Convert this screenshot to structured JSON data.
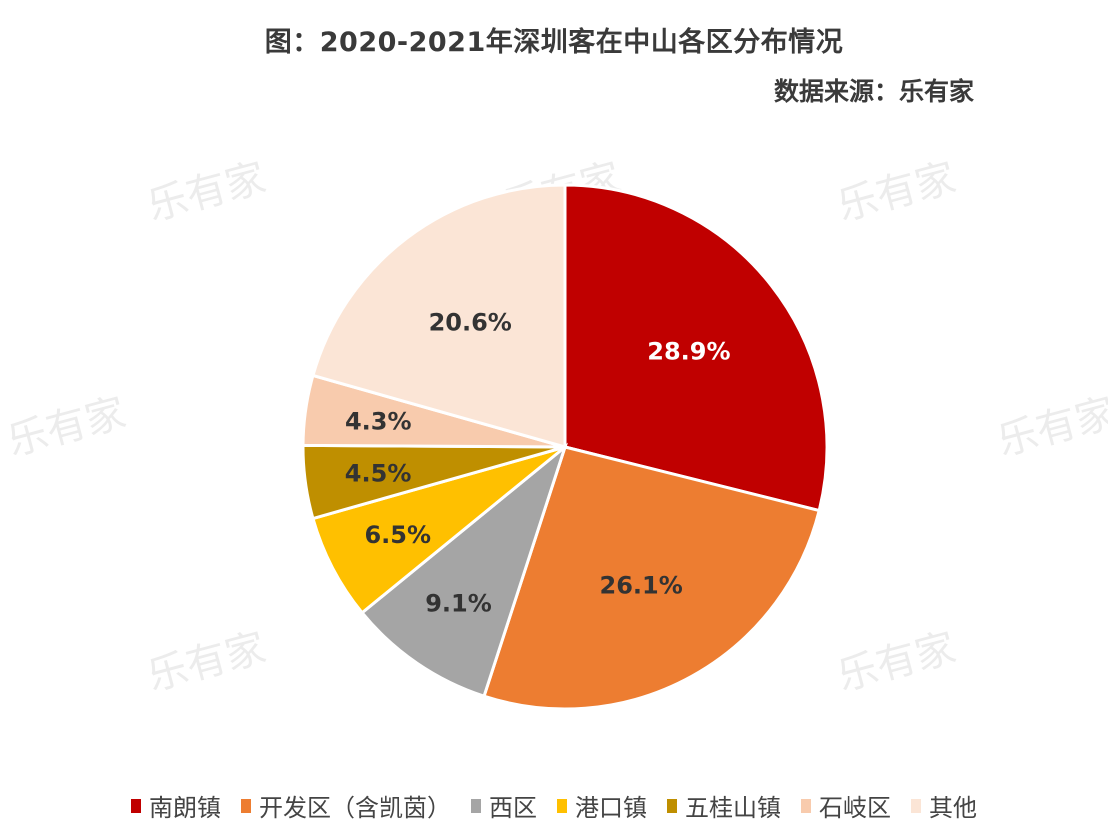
{
  "chart_data": {
    "type": "pie",
    "title": "图：2020-2021年深圳客在中山各区分布情况",
    "subtitle": "数据来源：乐有家",
    "start_angle": "12 o'clock",
    "direction": "clockwise",
    "legend_position": "bottom",
    "slices": [
      {
        "name": "南朗镇",
        "value": 28.9,
        "label": "28.9%",
        "color": "#c00000",
        "label_color": "#ffffff"
      },
      {
        "name": "开发区（含凯茵）",
        "value": 26.1,
        "label": "26.1%",
        "color": "#ed7d31",
        "label_color": "#333333"
      },
      {
        "name": "西区",
        "value": 9.1,
        "label": "9.1%",
        "color": "#a5a5a5",
        "label_color": "#333333"
      },
      {
        "name": "港口镇",
        "value": 6.5,
        "label": "6.5%",
        "color": "#ffc000",
        "label_color": "#333333"
      },
      {
        "name": "五桂山镇",
        "value": 4.5,
        "label": "4.5%",
        "color": "#bf8f00",
        "label_color": "#333333"
      },
      {
        "name": "石岐区",
        "value": 4.3,
        "label": "4.3%",
        "color": "#f8cbad",
        "label_color": "#333333"
      },
      {
        "name": "其他",
        "value": 20.6,
        "label": "20.6%",
        "color": "#fbe5d6",
        "label_color": "#333333"
      }
    ]
  },
  "watermark": "乐有家"
}
